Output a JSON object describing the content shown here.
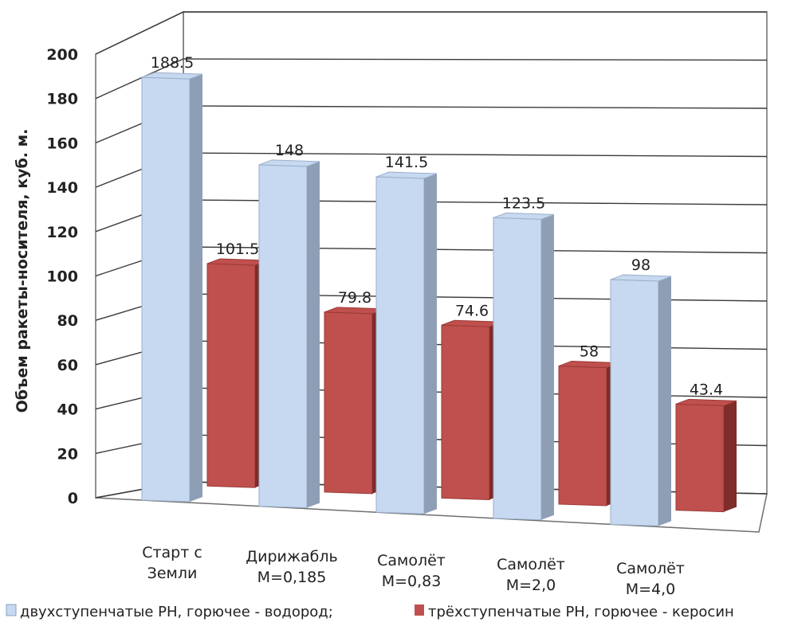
{
  "chart_data": {
    "type": "bar",
    "title": "",
    "xlabel": "",
    "ylabel": "Объем ракеты-носителя, куб. м.",
    "ylim": [
      0,
      200
    ],
    "yticks": [
      0,
      20,
      40,
      60,
      80,
      100,
      120,
      140,
      160,
      180,
      200
    ],
    "categories": [
      [
        "Старт с",
        "Земли"
      ],
      [
        "Дирижабль",
        "M=0,185"
      ],
      [
        "Самолёт",
        "M=0,83"
      ],
      [
        "Самолёт",
        "M=2,0"
      ],
      [
        "Самолёт",
        "M=4,0"
      ]
    ],
    "series": [
      {
        "name": "двухступенчатые РН, горючее - водород;",
        "values": [
          188.5,
          148,
          141.5,
          123.5,
          98
        ],
        "labels": [
          "188.5",
          "148",
          "141.5",
          "123.5",
          "98"
        ],
        "color": "#c6d9f1",
        "side_color": "#8e9fb5"
      },
      {
        "name": "трёхступенчатые РН, горючее - керосин",
        "values": [
          101.5,
          79.8,
          74.6,
          58,
          43.4
        ],
        "labels": [
          "101.5",
          "79.8",
          "74.6",
          "58",
          "43.4"
        ],
        "color": "#c0504d",
        "side_color": "#7f2c2a"
      }
    ],
    "grid": true,
    "legend_position": "bottom",
    "three_d": true
  }
}
